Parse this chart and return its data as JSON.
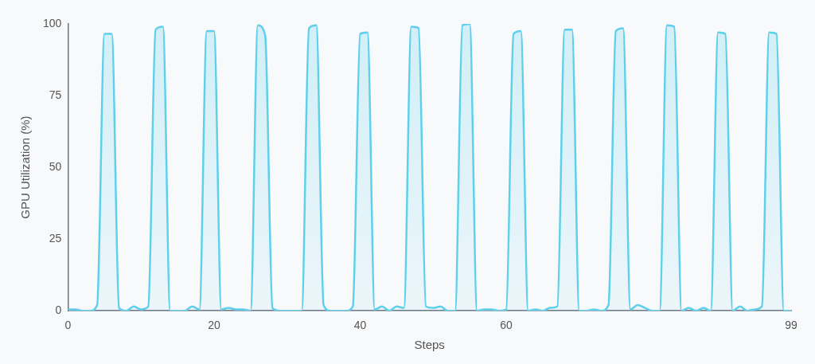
{
  "chart_data": {
    "type": "area",
    "xlabel": "Steps",
    "ylabel": "GPU Utilization (%)",
    "x": [
      0,
      1,
      2,
      3,
      4,
      5,
      6,
      7,
      8,
      9,
      10,
      11,
      12,
      13,
      14,
      15,
      16,
      17,
      18,
      19,
      20,
      21,
      22,
      23,
      24,
      25,
      26,
      27,
      28,
      29,
      30,
      31,
      32,
      33,
      34,
      35,
      36,
      37,
      38,
      39,
      40,
      41,
      42,
      43,
      44,
      45,
      46,
      47,
      48,
      49,
      50,
      51,
      52,
      53,
      54,
      55,
      56,
      57,
      58,
      59,
      60,
      61,
      62,
      63,
      64,
      65,
      66,
      67,
      68,
      69,
      70,
      71,
      72,
      73,
      74,
      75,
      76,
      77,
      78,
      79,
      80,
      81,
      82,
      83,
      84,
      85,
      86,
      87,
      88,
      89,
      90,
      91,
      92,
      93,
      94,
      95,
      96,
      97,
      98,
      99
    ],
    "series": [
      {
        "color": "#5fd0ec",
        "values": [
          0.5,
          0.5,
          0,
          0,
          2,
          96.5,
          96.5,
          1,
          0,
          1.5,
          0.5,
          1.5,
          98,
          99,
          0,
          0,
          0,
          1.5,
          0.5,
          97.5,
          97.5,
          0.5,
          1,
          0.5,
          0.5,
          0,
          99.5,
          96,
          1,
          0,
          0,
          0,
          0,
          98.5,
          99.5,
          2,
          0,
          0,
          0,
          1.5,
          96.5,
          97,
          0.5,
          1.5,
          0,
          1.5,
          1,
          99,
          98.5,
          1.5,
          1,
          1.5,
          0,
          0,
          99.5,
          100,
          0,
          0.5,
          0.5,
          0,
          0.5,
          96.5,
          97.5,
          0,
          0.5,
          0,
          1,
          1.5,
          98,
          98,
          0,
          0,
          0.5,
          0,
          2,
          97.5,
          98.5,
          0.5,
          2,
          1,
          0,
          0,
          99.5,
          99,
          0,
          1,
          0,
          1,
          0,
          97,
          96.5,
          0,
          1.5,
          0,
          0.5,
          1.5,
          97,
          96.5,
          0,
          0
        ]
      }
    ],
    "xlim": [
      0,
      99
    ],
    "xticks": [
      0,
      20,
      40,
      60,
      99
    ],
    "ylim": [
      0,
      100
    ],
    "yticks": [
      0,
      25,
      50,
      75,
      100
    ],
    "grid": false,
    "legend": false,
    "marker": "none",
    "line_style": "solid"
  }
}
